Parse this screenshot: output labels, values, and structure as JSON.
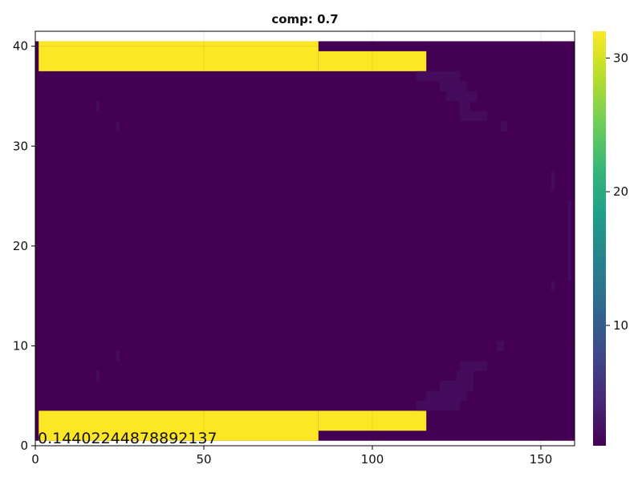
{
  "chart_data": {
    "type": "heatmap",
    "title": "comp: 0.7",
    "xlabel": "",
    "ylabel": "",
    "xlim": [
      0,
      160
    ],
    "ylim": [
      0,
      41.5
    ],
    "xticks": [
      0,
      50,
      100,
      150
    ],
    "yticks": [
      0,
      10,
      20,
      30,
      40
    ],
    "colorbar": {
      "range": [
        1,
        32
      ],
      "ticks": [
        10,
        20,
        30
      ],
      "colormap": "viridis"
    },
    "grid": true,
    "annotation": "0.14402244878892137",
    "regions": [
      {
        "value": 1,
        "x": [
          0,
          160
        ],
        "y": [
          0.5,
          40.5
        ],
        "desc": "background"
      },
      {
        "value": 32,
        "x": [
          1,
          84
        ],
        "y": [
          37.5,
          40.5
        ]
      },
      {
        "value": 32,
        "x": [
          84,
          116
        ],
        "y": [
          37.5,
          39.5
        ]
      },
      {
        "value": 32,
        "x": [
          1,
          84
        ],
        "y": [
          0.5,
          3.5
        ]
      },
      {
        "value": 32,
        "x": [
          84,
          116
        ],
        "y": [
          1.5,
          3.5
        ]
      },
      {
        "value": 2,
        "x": [
          113,
          126
        ],
        "y": [
          36.5,
          37.5
        ]
      },
      {
        "value": 2,
        "x": [
          120,
          128
        ],
        "y": [
          35.5,
          36.5
        ]
      },
      {
        "value": 2,
        "x": [
          122,
          131
        ],
        "y": [
          34.5,
          35.5
        ]
      },
      {
        "value": 2,
        "x": [
          126,
          129
        ],
        "y": [
          33.5,
          34.5
        ]
      },
      {
        "value": 2,
        "x": [
          126,
          134
        ],
        "y": [
          32.5,
          33.5
        ]
      },
      {
        "value": 2,
        "x": [
          113,
          126
        ],
        "y": [
          3.5,
          4.5
        ]
      },
      {
        "value": 2,
        "x": [
          116,
          128
        ],
        "y": [
          4.5,
          5.5
        ]
      },
      {
        "value": 2,
        "x": [
          120,
          130
        ],
        "y": [
          5.5,
          6.5
        ]
      },
      {
        "value": 2,
        "x": [
          125,
          130
        ],
        "y": [
          6.5,
          7.5
        ]
      },
      {
        "value": 2,
        "x": [
          126,
          134
        ],
        "y": [
          7.5,
          8.5
        ]
      },
      {
        "value": 2,
        "x": [
          137,
          139
        ],
        "y": [
          9.5,
          10.5
        ]
      },
      {
        "value": 2,
        "x": [
          138,
          140
        ],
        "y": [
          31.5,
          32.5
        ]
      },
      {
        "value": 2,
        "x": [
          18,
          19
        ],
        "y": [
          33.5,
          34.5
        ]
      },
      {
        "value": 2,
        "x": [
          24,
          25
        ],
        "y": [
          31.5,
          32.5
        ]
      },
      {
        "value": 2,
        "x": [
          24,
          25
        ],
        "y": [
          8.5,
          9.5
        ]
      },
      {
        "value": 2,
        "x": [
          18,
          19
        ],
        "y": [
          6.5,
          7.5
        ]
      },
      {
        "value": 2,
        "x": [
          153,
          154
        ],
        "y": [
          25.5,
          27.5
        ]
      },
      {
        "value": 2,
        "x": [
          153,
          154
        ],
        "y": [
          15.5,
          16.5
        ]
      },
      {
        "value": 2,
        "x": [
          158,
          159
        ],
        "y": [
          16.5,
          24.5
        ]
      }
    ]
  }
}
